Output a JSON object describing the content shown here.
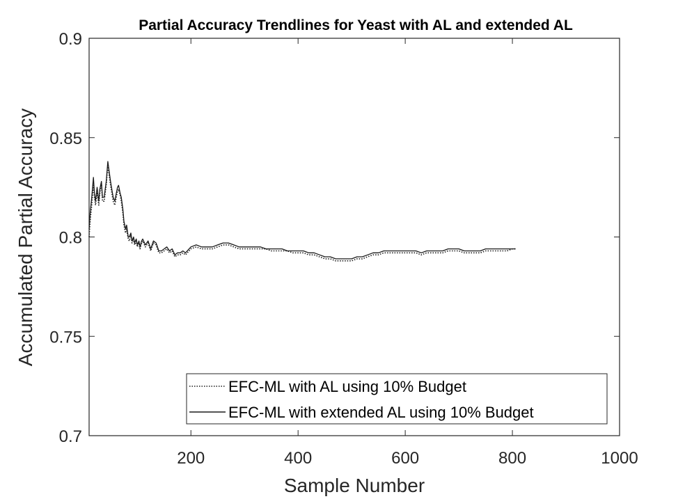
{
  "chart_data": {
    "type": "line",
    "title": "Partial Accuracy Trendlines for Yeast with AL and extended AL",
    "xlabel": "Sample Number",
    "ylabel": "Accumulated Partial Accuracy",
    "xlim": [
      10,
      1000
    ],
    "ylim": [
      0.7,
      0.9
    ],
    "x_ticks": [
      200,
      400,
      600,
      800,
      1000
    ],
    "x_tick_labels": [
      "200",
      "400",
      "600",
      "800",
      "1000"
    ],
    "y_ticks": [
      0.7,
      0.75,
      0.8,
      0.85,
      0.9
    ],
    "y_tick_labels": [
      "0.7",
      "0.75",
      "0.8",
      "0.85",
      "0.9"
    ],
    "grid": false,
    "legend_position": "bottom-right",
    "series": [
      {
        "name": "EFC-ML with AL using 10% Budget",
        "style": "dotted",
        "color": "#1a1a1a",
        "x": [
          10,
          12,
          15,
          18,
          20,
          22,
          25,
          28,
          30,
          33,
          35,
          38,
          40,
          42,
          45,
          48,
          50,
          53,
          55,
          58,
          60,
          63,
          65,
          68,
          70,
          73,
          75,
          78,
          80,
          83,
          85,
          88,
          90,
          93,
          95,
          98,
          100,
          103,
          105,
          108,
          110,
          115,
          120,
          125,
          130,
          135,
          140,
          145,
          150,
          155,
          160,
          165,
          170,
          175,
          180,
          185,
          190,
          200,
          210,
          220,
          230,
          240,
          250,
          260,
          270,
          280,
          290,
          300,
          310,
          320,
          330,
          340,
          350,
          360,
          370,
          380,
          390,
          400,
          410,
          420,
          430,
          440,
          450,
          460,
          470,
          480,
          490,
          500,
          510,
          520,
          530,
          540,
          550,
          560,
          570,
          580,
          590,
          600,
          610,
          620,
          630,
          640,
          650,
          660,
          670,
          680,
          690,
          700,
          710,
          720,
          730,
          740,
          750,
          760,
          770,
          780,
          790,
          800,
          806
        ],
        "values": [
          0.8,
          0.808,
          0.816,
          0.826,
          0.82,
          0.816,
          0.822,
          0.816,
          0.822,
          0.827,
          0.818,
          0.818,
          0.822,
          0.826,
          0.836,
          0.83,
          0.826,
          0.821,
          0.818,
          0.816,
          0.819,
          0.823,
          0.824,
          0.821,
          0.818,
          0.812,
          0.806,
          0.802,
          0.804,
          0.799,
          0.798,
          0.801,
          0.797,
          0.799,
          0.796,
          0.798,
          0.795,
          0.797,
          0.794,
          0.797,
          0.798,
          0.795,
          0.797,
          0.793,
          0.797,
          0.796,
          0.792,
          0.792,
          0.793,
          0.794,
          0.792,
          0.793,
          0.79,
          0.791,
          0.791,
          0.792,
          0.791,
          0.794,
          0.795,
          0.794,
          0.794,
          0.794,
          0.795,
          0.796,
          0.796,
          0.795,
          0.794,
          0.794,
          0.794,
          0.794,
          0.794,
          0.794,
          0.793,
          0.793,
          0.793,
          0.793,
          0.792,
          0.792,
          0.792,
          0.791,
          0.791,
          0.79,
          0.789,
          0.789,
          0.788,
          0.788,
          0.788,
          0.788,
          0.789,
          0.789,
          0.79,
          0.791,
          0.791,
          0.792,
          0.792,
          0.792,
          0.792,
          0.792,
          0.792,
          0.792,
          0.791,
          0.792,
          0.792,
          0.792,
          0.792,
          0.793,
          0.793,
          0.793,
          0.792,
          0.792,
          0.792,
          0.792,
          0.793,
          0.793,
          0.793,
          0.793,
          0.793,
          0.794,
          0.794
        ]
      },
      {
        "name": "EFC-ML with extended AL using 10% Budget",
        "style": "solid",
        "color": "#1a1a1a",
        "x": [
          10,
          12,
          15,
          18,
          20,
          22,
          25,
          28,
          30,
          33,
          35,
          38,
          40,
          42,
          45,
          48,
          50,
          53,
          55,
          58,
          60,
          63,
          65,
          68,
          70,
          73,
          75,
          78,
          80,
          83,
          85,
          88,
          90,
          93,
          95,
          98,
          100,
          103,
          105,
          108,
          110,
          115,
          120,
          125,
          130,
          135,
          140,
          145,
          150,
          155,
          160,
          165,
          170,
          175,
          180,
          185,
          190,
          200,
          210,
          220,
          230,
          240,
          250,
          260,
          270,
          280,
          290,
          300,
          310,
          320,
          330,
          340,
          350,
          360,
          370,
          380,
          390,
          400,
          410,
          420,
          430,
          440,
          450,
          460,
          470,
          480,
          490,
          500,
          510,
          520,
          530,
          540,
          550,
          560,
          570,
          580,
          590,
          600,
          610,
          620,
          630,
          640,
          650,
          660,
          670,
          680,
          690,
          700,
          710,
          720,
          730,
          740,
          750,
          760,
          770,
          780,
          790,
          800,
          806
        ],
        "values": [
          0.804,
          0.812,
          0.82,
          0.83,
          0.822,
          0.818,
          0.825,
          0.818,
          0.824,
          0.828,
          0.82,
          0.82,
          0.824,
          0.828,
          0.838,
          0.832,
          0.828,
          0.823,
          0.82,
          0.818,
          0.821,
          0.825,
          0.826,
          0.822,
          0.82,
          0.814,
          0.808,
          0.804,
          0.806,
          0.8,
          0.8,
          0.802,
          0.798,
          0.8,
          0.797,
          0.799,
          0.796,
          0.798,
          0.795,
          0.798,
          0.799,
          0.796,
          0.798,
          0.794,
          0.798,
          0.797,
          0.793,
          0.793,
          0.794,
          0.795,
          0.793,
          0.794,
          0.791,
          0.792,
          0.792,
          0.793,
          0.792,
          0.795,
          0.796,
          0.795,
          0.795,
          0.795,
          0.796,
          0.797,
          0.797,
          0.796,
          0.795,
          0.795,
          0.795,
          0.795,
          0.795,
          0.794,
          0.794,
          0.794,
          0.794,
          0.793,
          0.793,
          0.793,
          0.793,
          0.792,
          0.792,
          0.791,
          0.79,
          0.79,
          0.789,
          0.789,
          0.789,
          0.789,
          0.79,
          0.79,
          0.791,
          0.792,
          0.792,
          0.793,
          0.793,
          0.793,
          0.793,
          0.793,
          0.793,
          0.793,
          0.792,
          0.793,
          0.793,
          0.793,
          0.793,
          0.794,
          0.794,
          0.794,
          0.793,
          0.793,
          0.793,
          0.793,
          0.794,
          0.794,
          0.794,
          0.794,
          0.794,
          0.794,
          0.794
        ]
      }
    ]
  }
}
